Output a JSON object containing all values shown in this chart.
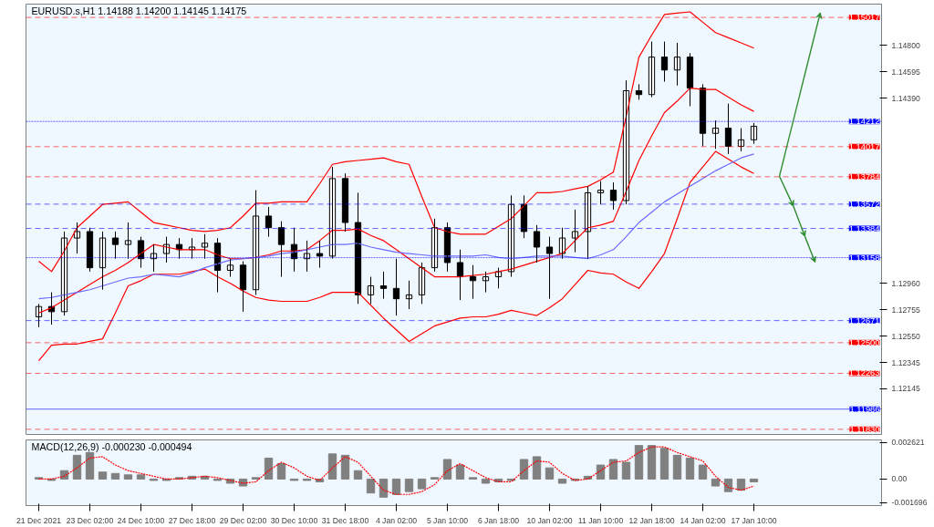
{
  "chart_data": [
    {
      "type": "candlestick",
      "title": "EURUSD.s,H1  1.14188 1.14200 1.14145 1.14175",
      "color": "#000000",
      "categories": [
        null,
        null,
        null,
        null,
        null,
        null,
        null,
        null,
        null,
        null,
        null,
        null,
        null,
        null,
        null,
        null,
        null,
        null,
        null,
        null,
        null,
        null,
        null,
        null,
        null,
        null,
        null,
        null,
        null,
        null,
        null,
        null,
        null,
        null,
        null,
        null,
        null,
        null,
        null,
        null,
        null,
        null,
        null,
        null,
        null,
        null,
        null,
        null,
        null,
        null,
        null,
        null,
        null,
        null,
        null,
        null,
        null,
        null,
        null,
        null,
        null,
        null,
        null,
        null
      ],
      "ohlc": [
        [
          1.127,
          1.128,
          1.1262,
          1.1278
        ],
        [
          1.1278,
          1.1289,
          1.1264,
          1.1274
        ],
        [
          1.1274,
          1.1336,
          1.1271,
          1.1331
        ],
        [
          1.1331,
          1.1343,
          1.1319,
          1.1336
        ],
        [
          1.1336,
          1.1339,
          1.1305,
          1.1308
        ],
        [
          1.1308,
          1.1336,
          1.1291,
          1.1331
        ],
        [
          1.1331,
          1.1336,
          1.1315,
          1.1326
        ],
        [
          1.1326,
          1.1343,
          1.1315,
          1.1329
        ],
        [
          1.1329,
          1.1332,
          1.1308,
          1.1315
        ],
        [
          1.1315,
          1.1326,
          1.1305,
          1.1319
        ],
        [
          1.1319,
          1.1332,
          1.1312,
          1.1326
        ],
        [
          1.1326,
          1.1331,
          1.1315,
          1.1322
        ],
        [
          1.1322,
          1.1331,
          1.1315,
          1.1324
        ],
        [
          1.1324,
          1.1334,
          1.1315,
          1.1327
        ],
        [
          1.1327,
          1.1331,
          1.1289,
          1.1306
        ],
        [
          1.1306,
          1.1315,
          1.1301,
          1.131
        ],
        [
          1.131,
          1.1313,
          1.1274,
          1.1291
        ],
        [
          1.1291,
          1.1368,
          1.1287,
          1.1348
        ],
        [
          1.1348,
          1.1355,
          1.1332,
          1.1339
        ],
        [
          1.1339,
          1.1344,
          1.1301,
          1.1326
        ],
        [
          1.1326,
          1.1339,
          1.1305,
          1.1315
        ],
        [
          1.1315,
          1.1329,
          1.1305,
          1.1319
        ],
        [
          1.1319,
          1.1329,
          1.1308,
          1.1317
        ],
        [
          1.1317,
          1.1386,
          1.1315,
          1.1377
        ],
        [
          1.1377,
          1.1381,
          1.1336,
          1.1343
        ],
        [
          1.1343,
          1.1366,
          1.128,
          1.1287
        ],
        [
          1.1287,
          1.1301,
          1.128,
          1.1294
        ],
        [
          1.1294,
          1.1305,
          1.1284,
          1.1292
        ],
        [
          1.1292,
          1.1315,
          1.1271,
          1.1284
        ],
        [
          1.1284,
          1.1298,
          1.1276,
          1.1287
        ],
        [
          1.1287,
          1.1312,
          1.128,
          1.1308
        ],
        [
          1.1308,
          1.1346,
          1.1305,
          1.1339
        ],
        [
          1.1339,
          1.1343,
          1.1305,
          1.1312
        ],
        [
          1.1312,
          1.1322,
          1.1283,
          1.1301
        ],
        [
          1.1301,
          1.131,
          1.1284,
          1.1298
        ],
        [
          1.1298,
          1.1305,
          1.1289,
          1.1301
        ],
        [
          1.1301,
          1.1308,
          1.1292,
          1.1305
        ],
        [
          1.1305,
          1.1364,
          1.1301,
          1.1357
        ],
        [
          1.1357,
          1.1364,
          1.1331,
          1.1336
        ],
        [
          1.1336,
          1.1341,
          1.1312,
          1.1324
        ],
        [
          1.1324,
          1.1332,
          1.1284,
          1.1319
        ],
        [
          1.1319,
          1.1339,
          1.1315,
          1.1331
        ],
        [
          1.1331,
          1.1353,
          1.132,
          1.1336
        ],
        [
          1.1336,
          1.1371,
          1.1315,
          1.1366
        ],
        [
          1.1366,
          1.1375,
          1.1357,
          1.1368
        ],
        [
          1.1368,
          1.1374,
          1.1353,
          1.136
        ],
        [
          1.136,
          1.1453,
          1.1357,
          1.1445
        ],
        [
          1.1445,
          1.145,
          1.1438,
          1.1442
        ],
        [
          1.1442,
          1.1483,
          1.144,
          1.1471
        ],
        [
          1.1471,
          1.1483,
          1.1452,
          1.1461
        ],
        [
          1.1461,
          1.1482,
          1.1449,
          1.1471
        ],
        [
          1.1471,
          1.1474,
          1.1433,
          1.1447
        ],
        [
          1.1447,
          1.145,
          1.1402,
          1.1412
        ],
        [
          1.1412,
          1.1422,
          1.14,
          1.1416
        ],
        [
          1.1416,
          1.1435,
          1.1396,
          1.1402
        ],
        [
          1.1402,
          1.1416,
          1.1398,
          1.1407
        ],
        [
          1.1407,
          1.142,
          1.1404,
          1.14175
        ],
        null,
        null,
        null,
        null,
        null,
        null,
        null
      ],
      "series": [
        {
          "type": "line",
          "color": "#ff0000",
          "line_style": "solid",
          "values": [
            1.1313,
            1.1305,
            1.1321,
            1.1339,
            1.1348,
            1.1357,
            1.1358,
            1.1359,
            1.1351,
            1.1343,
            1.1341,
            1.1339,
            1.1337,
            1.1336,
            1.1337,
            1.1339,
            1.1348,
            1.1358,
            1.1358,
            1.1359,
            1.1359,
            1.1359,
            1.1373,
            1.1388,
            1.139,
            1.1391,
            1.1392,
            1.1393,
            1.139,
            1.1388,
            1.1363,
            1.1339,
            1.1336,
            1.1334,
            1.1334,
            1.1334,
            1.134,
            1.1346,
            1.1356,
            1.1366,
            1.1366,
            1.1367,
            1.1369,
            1.1371,
            1.1376,
            1.1382,
            1.1425,
            1.1471,
            1.1488,
            1.1504,
            1.1505,
            1.1506,
            1.1498,
            1.149,
            1.1486,
            1.1482,
            1.1478,
            null,
            null,
            null,
            null,
            null,
            null,
            null
          ]
        },
        {
          "type": "line",
          "color": "#ff0000",
          "line_style": "solid",
          "values": [
            1.1273,
            1.1277,
            1.1283,
            1.1289,
            1.1295,
            1.1301,
            1.1306,
            1.1312,
            1.1319,
            1.1326,
            1.1324,
            1.1322,
            1.1322,
            1.1322,
            1.1318,
            1.1315,
            1.1315,
            1.1316,
            1.1318,
            1.1321,
            1.1321,
            1.1322,
            1.1329,
            1.1337,
            1.1337,
            1.1338,
            1.1333,
            1.1329,
            1.1322,
            1.1315,
            1.1308,
            1.1301,
            1.1301,
            1.1301,
            1.1302,
            1.1303,
            1.1305,
            1.1307,
            1.131,
            1.1313,
            1.1316,
            1.1319,
            1.1329,
            1.1339,
            1.1341,
            1.1344,
            1.1367,
            1.1391,
            1.141,
            1.1428,
            1.1437,
            1.1447,
            1.1446,
            1.1446,
            1.144,
            1.1434,
            1.1429,
            null,
            null,
            null,
            null,
            null,
            null,
            null
          ]
        },
        {
          "type": "line",
          "color": "#ff0000",
          "line_style": "solid",
          "values": [
            1.1236,
            1.1248,
            1.1249,
            1.1249,
            1.1251,
            1.1253,
            1.1273,
            1.1294,
            1.1298,
            1.1303,
            1.1303,
            1.1303,
            1.1305,
            1.1307,
            1.1301,
            1.1296,
            1.129,
            1.1285,
            1.1283,
            1.1282,
            1.1282,
            1.1282,
            1.1285,
            1.1289,
            1.1289,
            1.1289,
            1.1279,
            1.1269,
            1.126,
            1.1251,
            1.1257,
            1.1263,
            1.1266,
            1.1269,
            1.127,
            1.127,
            1.1272,
            1.1275,
            1.1273,
            1.1271,
            1.1277,
            1.1284,
            1.1295,
            1.1306,
            1.1304,
            1.1303,
            1.1297,
            1.1292,
            1.1305,
            1.1319,
            1.1346,
            1.1374,
            1.1386,
            1.1398,
            1.1392,
            1.1386,
            1.1381,
            null,
            null,
            null,
            null,
            null,
            null,
            null
          ]
        },
        {
          "type": "line",
          "color": "#6b6bff",
          "line_style": "solid",
          "values": [
            1.1284,
            1.1285,
            1.1287,
            1.1289,
            1.1291,
            1.1294,
            1.1297,
            1.13,
            1.1301,
            1.1303,
            1.1302,
            1.1301,
            1.1304,
            1.1308,
            1.1311,
            1.1314,
            1.1315,
            1.1316,
            1.1317,
            1.1319,
            1.132,
            1.1322,
            1.1324,
            1.1326,
            1.1326,
            1.1327,
            1.1324,
            1.1322,
            1.132,
            1.1319,
            1.1318,
            1.1317,
            1.1317,
            1.1317,
            1.1317,
            1.1318,
            1.1316,
            1.1315,
            1.1316,
            1.1317,
            1.1317,
            1.1317,
            1.1316,
            1.1315,
            1.1318,
            1.1322,
            1.1332,
            1.1343,
            1.1351,
            1.1359,
            1.1365,
            1.1371,
            1.1377,
            1.1383,
            1.1388,
            1.1393,
            1.1396,
            null,
            null,
            null,
            null,
            null,
            null,
            null
          ]
        }
      ],
      "ylim": [
        1.1179,
        1.1512
      ],
      "yticks": [
        {
          "value": 1.148,
          "label": "1.14800"
        },
        1.14595,
        {
          "value": 1.1439,
          "label": "1.14390"
        },
        {
          "value": 1.1296,
          "label": "1.12960"
        },
        1.12755,
        {
          "value": 1.1255,
          "label": "1.12550"
        },
        1.12345,
        1.12145
      ],
      "tick_labels": "y",
      "grid": false,
      "ref_lines": [
        {
          "axis": "y",
          "value": 1.15017,
          "label": "1.15017",
          "color": "#ff0000",
          "line_style": "dashed"
        },
        {
          "axis": "y",
          "value": 1.14212,
          "label": "1.14212",
          "color": "#0000ff",
          "line_style": "dotted"
        },
        {
          "axis": "y",
          "value": 1.14017,
          "label": "1.14017",
          "color": "#ff0000",
          "line_style": "dashed"
        },
        {
          "axis": "y",
          "value": 1.13784,
          "label": "1.13784",
          "color": "#ff0000",
          "line_style": "dashed"
        },
        {
          "axis": "y",
          "value": 1.13572,
          "label": "1.13572",
          "color": "#0000ff",
          "line_style": "dashed"
        },
        {
          "axis": "y",
          "value": 1.13384,
          "label": "1.13384",
          "color": "#0000ff",
          "line_style": "dashed"
        },
        {
          "axis": "y",
          "value": 1.13158,
          "label": "1.13158",
          "color": "#0000ff",
          "line_style": "dotted"
        },
        {
          "axis": "y",
          "value": 1.12671,
          "label": "1.12671",
          "color": "#0000ff",
          "line_style": "dashed"
        },
        {
          "axis": "y",
          "value": 1.125,
          "label": "1.12500",
          "color": "#ff0000",
          "line_style": "dashed"
        },
        {
          "axis": "y",
          "value": 1.12263,
          "label": "1.12263",
          "color": "#ff0000",
          "line_style": "dashed"
        },
        {
          "axis": "y",
          "value": 1.11986,
          "label": "1.11986",
          "color": "#0000ff",
          "line_style": "solid"
        },
        {
          "axis": "y",
          "value": 1.1183,
          "label": "1.11830",
          "color": "#ff0000",
          "line_style": "dashed"
        }
      ]
    },
    {
      "type": "bar",
      "title": "MACD(12,26,9) -0.000230 -0.000494",
      "categories": [
        "21 Dec 2021",
        null,
        null,
        null,
        "23 Dec 02:00",
        null,
        null,
        null,
        "24 Dec 10:00",
        null,
        null,
        null,
        "27 Dec 18:00",
        null,
        null,
        null,
        "29 Dec 02:00",
        null,
        null,
        null,
        "30 Dec 10:00",
        null,
        null,
        null,
        "31 Dec 18:00",
        null,
        null,
        null,
        "4 Jan 02:00",
        null,
        null,
        null,
        "5 Jan 10:00",
        null,
        null,
        null,
        "6 Jan 18:00",
        null,
        null,
        null,
        "10 Jan 02:00",
        null,
        null,
        null,
        "11 Jan 10:00",
        null,
        null,
        null,
        "12 Jan 18:00",
        null,
        null,
        null,
        "14 Jan 02:00",
        null,
        null,
        null,
        "17 Jan 10:00",
        null,
        null,
        null,
        null,
        null,
        null,
        null
      ],
      "series": [
        {
          "type": "bar",
          "color": "#808080",
          "values": [
            0.0001,
            -0.0001,
            0.0006,
            0.0017,
            0.0019,
            0.0005,
            0.0004,
            0.0003,
            0.0003,
            -0.0001,
            -0.0001,
            0.0001,
            0.0002,
            0.0002,
            -0.0001,
            -0.0003,
            -0.0005,
            0.0001,
            0.0015,
            0.0011,
            -0.0001,
            -0.0001,
            -0.0002,
            0.0018,
            0.0017,
            0.0006,
            -0.001,
            -0.0013,
            -0.0011,
            -0.0009,
            -0.0007,
            0.0001,
            0.0014,
            0.001,
            0.0001,
            -0.0003,
            -0.0002,
            -0.0001,
            0.0014,
            0.0016,
            0.0008,
            -0.0003,
            -0.0001,
            0.0002,
            0.001,
            0.0014,
            0.0012,
            0.0024,
            0.0024,
            0.0022,
            0.0017,
            0.0015,
            0.001,
            -0.0005,
            -0.0009,
            -0.0008,
            -0.0002,
            null,
            null,
            null,
            null,
            null,
            null,
            null
          ]
        },
        {
          "type": "line",
          "color": "#ff0000",
          "line_style": "dotted",
          "values": [
            0.0,
            0.0,
            0.0002,
            0.0008,
            0.0015,
            0.0016,
            0.001,
            0.0006,
            0.0004,
            0.0002,
            0.0,
            0.0,
            0.0001,
            0.0002,
            0.0001,
            -0.0001,
            -0.0003,
            -0.0002,
            0.0006,
            0.0012,
            0.0008,
            0.0002,
            -0.0001,
            0.0008,
            0.0016,
            0.0012,
            0.0002,
            -0.0008,
            -0.0011,
            -0.0011,
            -0.0009,
            -0.0004,
            0.0006,
            0.0011,
            0.0006,
            0.0001,
            -0.0002,
            -0.0002,
            0.0006,
            0.0013,
            0.0012,
            0.0004,
            -0.0001,
            0.0,
            0.0006,
            0.0012,
            0.0013,
            0.0019,
            0.0023,
            0.0023,
            0.0019,
            0.0016,
            0.0013,
            0.0002,
            -0.0006,
            -0.0008,
            -0.0005,
            null,
            null,
            null,
            null,
            null,
            null,
            null
          ]
        }
      ],
      "ylim": [
        -0.0019,
        0.0028
      ],
      "yticks": [
        0.002621,
        {
          "value": 0,
          "label": "0.00"
        },
        -0.001696
      ],
      "grid": false
    }
  ]
}
